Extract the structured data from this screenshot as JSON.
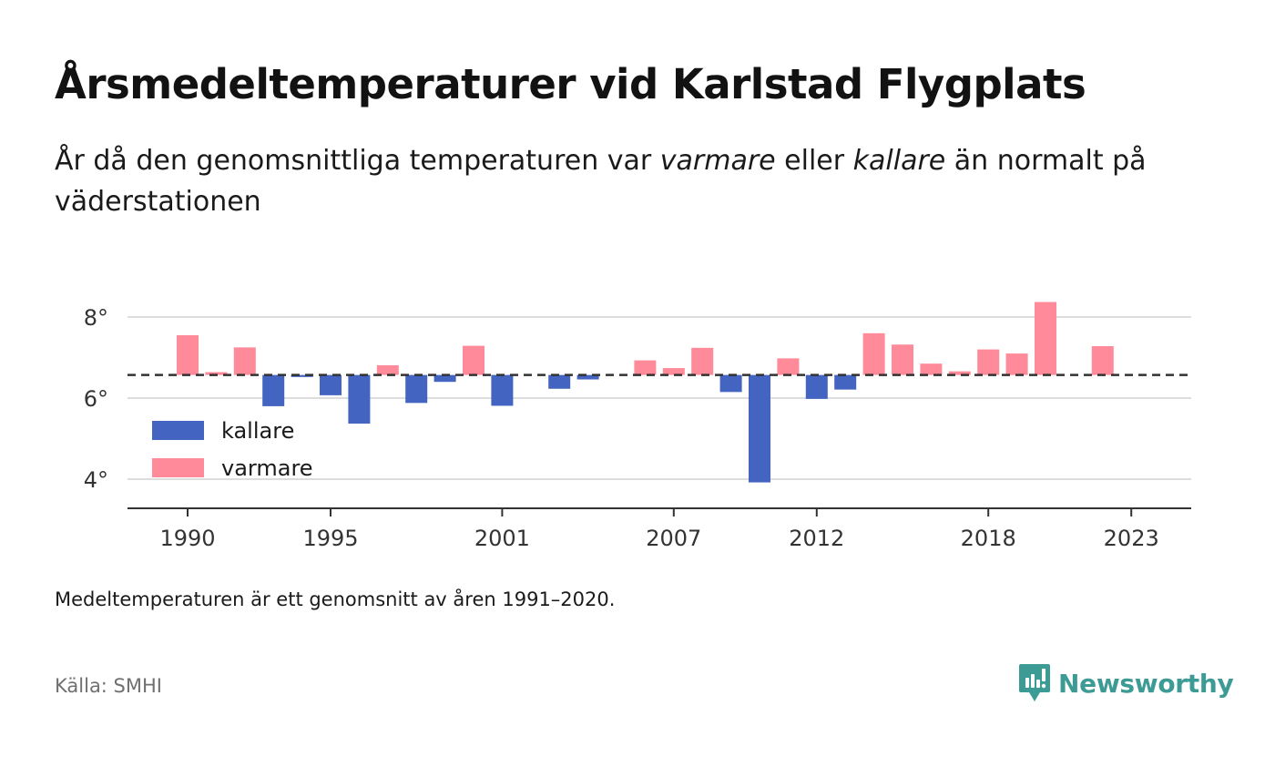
{
  "header": {
    "title": "Årsmedeltemperaturer vid Karlstad Flygplats",
    "subtitle_pre": "År då den genomsnittliga temperaturen var ",
    "subtitle_warm": "varmare",
    "subtitle_mid": " eller ",
    "subtitle_cold": "kallare",
    "subtitle_post": " än normalt på väderstationen"
  },
  "footer": {
    "note": "Medeltemperaturen är ett genomsnitt av åren 1991–2020.",
    "source": "Källa: SMHI",
    "brand": "Newsworthy"
  },
  "colors": {
    "colder": "#4364c0",
    "warmer": "#ff8a99",
    "baseline": "#333333",
    "grid": "#dddddd",
    "brand": "#3d9b95"
  },
  "chart_data": {
    "type": "bar",
    "baseline": 6.57,
    "ylim": [
      3.3,
      8.6
    ],
    "yticks": [
      4,
      6,
      8
    ],
    "ytick_labels": [
      "4°",
      "6°",
      "8°"
    ],
    "xticks": [
      1990,
      1995,
      2001,
      2007,
      2012,
      2018,
      2023
    ],
    "xtick_labels": [
      "1990",
      "1995",
      "2001",
      "2007",
      "2012",
      "2018",
      "2023"
    ],
    "legend": [
      {
        "name": "kallare",
        "color": "#4364c0"
      },
      {
        "name": "varmare",
        "color": "#ff8a99"
      }
    ],
    "legend_position": "bottom-left",
    "grid": true,
    "years": [
      1990,
      1991,
      1992,
      1993,
      1994,
      1995,
      1996,
      1997,
      1998,
      1999,
      2000,
      2001,
      2002,
      2003,
      2004,
      2005,
      2006,
      2007,
      2008,
      2009,
      2010,
      2011,
      2012,
      2013,
      2014,
      2015,
      2016,
      2017,
      2018,
      2019,
      2020,
      2021,
      2022
    ],
    "values": [
      7.55,
      6.64,
      7.25,
      5.8,
      6.52,
      6.07,
      5.37,
      6.81,
      5.88,
      6.4,
      7.29,
      5.81,
      null,
      6.23,
      6.46,
      null,
      6.93,
      6.74,
      7.24,
      6.15,
      3.92,
      6.98,
      5.98,
      6.21,
      7.6,
      7.32,
      6.85,
      6.66,
      7.2,
      7.1,
      8.37,
      null,
      7.28
    ]
  }
}
